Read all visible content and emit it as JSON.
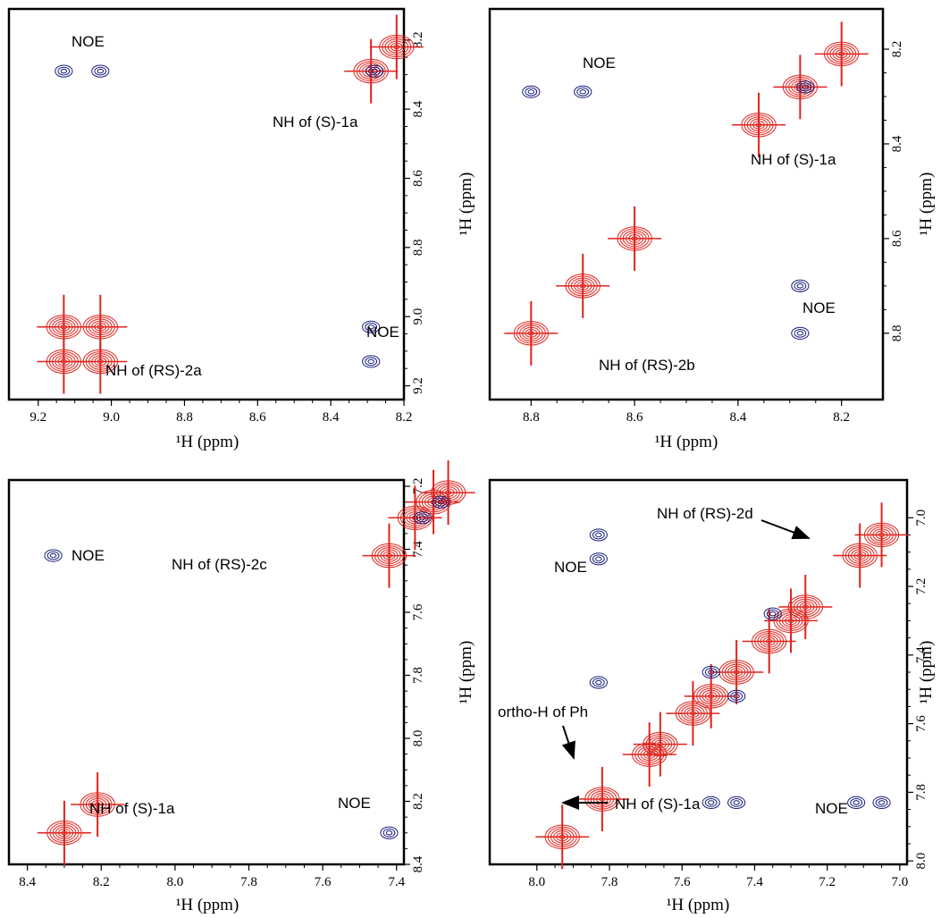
{
  "chart_data": [
    {
      "type": "contour",
      "xlim": [
        9.28,
        8.2
      ],
      "ylim": [
        8.11,
        9.24
      ],
      "xticks": [
        9.2,
        {
          "value": 9,
          "label": "9.0"
        },
        8.8,
        8.6,
        8.4,
        8.2
      ],
      "yticks": [
        8.2,
        8.4,
        8.6,
        8.8,
        {
          "value": 9,
          "label": "9.0"
        },
        9.2
      ],
      "xlabel": "¹H (ppm)",
      "series": [
        {
          "color": "#e0231c",
          "x": [
            8.29,
            9.13,
            9.13,
            9.03,
            9.03,
            8.22
          ],
          "y": [
            8.29,
            9.13,
            9.03,
            9.03,
            9.13,
            8.22
          ]
        },
        {
          "color": "#1a1f7a",
          "x": [
            9.13,
            9.03,
            8.29,
            8.29,
            8.28
          ],
          "y": [
            8.29,
            8.29,
            9.03,
            9.13,
            8.29
          ]
        }
      ],
      "annotations": [
        "NOE",
        "NH of (S)-1a",
        "NOE",
        "NH of (RS)-2a"
      ]
    },
    {
      "type": "contour",
      "xlim": [
        8.88,
        8.12
      ],
      "ylim": [
        8.115,
        8.94
      ],
      "xticks": [
        8.8,
        8.6,
        8.4,
        8.2
      ],
      "yticks": [
        8.2,
        8.4,
        8.6,
        8.8
      ],
      "xlabel": "¹H (ppm)",
      "ylabel": "¹H (ppm)",
      "series": [
        {
          "color": "#e0231c",
          "x": [
            8.28,
            8.8,
            8.7,
            8.6,
            8.36,
            8.2
          ],
          "y": [
            8.28,
            8.8,
            8.7,
            8.6,
            8.36,
            8.21
          ]
        },
        {
          "color": "#1a1f7a",
          "x": [
            8.8,
            8.7,
            8.28,
            8.28,
            8.27
          ],
          "y": [
            8.29,
            8.29,
            8.7,
            8.8,
            8.28
          ]
        }
      ],
      "annotations": [
        "NOE",
        "NH of (S)-1a",
        "NOE",
        "NH of (RS)-2b"
      ]
    },
    {
      "type": "contour",
      "xlim": [
        8.45,
        7.38
      ],
      "ylim": [
        7.18,
        8.4
      ],
      "xticks": [
        8.4,
        8.2,
        {
          "value": 8,
          "label": "8.0"
        },
        7.8,
        7.6,
        7.4
      ],
      "yticks": [
        7.2,
        7.4,
        7.6,
        7.8,
        {
          "value": 8,
          "label": "8.0"
        },
        8.2,
        8.4
      ],
      "xlabel": "¹H (ppm)",
      "series": [
        {
          "color": "#e0231c",
          "x": [
            8.3,
            8.21,
            7.42,
            7.35,
            7.3,
            7.26
          ],
          "y": [
            8.3,
            8.21,
            7.42,
            7.3,
            7.25,
            7.22
          ]
        },
        {
          "color": "#1a1f7a",
          "x": [
            8.33,
            7.42,
            7.33,
            7.28
          ],
          "y": [
            7.42,
            8.3,
            7.3,
            7.25
          ]
        }
      ],
      "annotations": [
        "NOE",
        "NH of (RS)-2c",
        "NH of (S)-1a",
        "NOE"
      ]
    },
    {
      "type": "contour",
      "xlim": [
        8.13,
        6.98
      ],
      "ylim": [
        6.89,
        8.01
      ],
      "xticks": [
        {
          "value": 8,
          "label": "8.0"
        },
        7.8,
        7.6,
        7.4,
        7.2,
        {
          "value": 7,
          "label": "7.0"
        }
      ],
      "yticks": [
        {
          "value": 7,
          "label": "7.0"
        },
        7.2,
        7.4,
        7.6,
        7.8,
        {
          "value": 8,
          "label": "8.0"
        }
      ],
      "xlabel": "¹H (ppm)",
      "ylabel": "¹H (ppm)",
      "series": [
        {
          "color": "#e0231c",
          "x": [
            7.93,
            7.82,
            7.69,
            7.66,
            7.57,
            7.52,
            7.45,
            7.36,
            7.3,
            7.26,
            7.11,
            7.05
          ],
          "y": [
            7.93,
            7.82,
            7.69,
            7.66,
            7.57,
            7.52,
            7.45,
            7.36,
            7.3,
            7.26,
            7.11,
            7.05
          ]
        },
        {
          "color": "#1a1f7a",
          "x": [
            7.83,
            7.83,
            7.83,
            7.12,
            7.05,
            7.52,
            7.45,
            7.52,
            7.45,
            7.35
          ],
          "y": [
            7.05,
            7.12,
            7.48,
            7.83,
            7.83,
            7.83,
            7.83,
            7.45,
            7.52,
            7.28
          ]
        }
      ],
      "annotations": [
        "NH of (RS)-2d",
        "NOE",
        "ortho-H of Ph",
        "NH of (S)-1a",
        "NOE"
      ]
    }
  ]
}
